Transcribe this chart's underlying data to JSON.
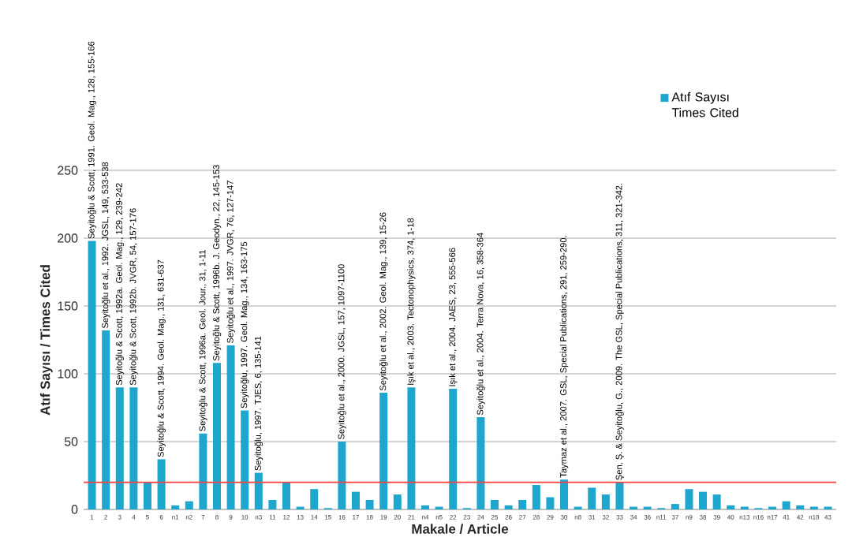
{
  "chart_data": {
    "type": "bar",
    "xlabel": "Makale / Article",
    "ylabel": "Atıf Sayısı / Times Cited",
    "categories": [
      "1",
      "2",
      "3",
      "4",
      "5",
      "6",
      "n1",
      "n2",
      "7",
      "8",
      "9",
      "10",
      "n3",
      "11",
      "12",
      "13",
      "14",
      "15",
      "16",
      "17",
      "18",
      "19",
      "20",
      "21",
      "n4",
      "n5",
      "22",
      "23",
      "24",
      "25",
      "26",
      "27",
      "28",
      "29",
      "30",
      "n8",
      "31",
      "32",
      "33",
      "34",
      "36",
      "n11",
      "37",
      "n9",
      "38",
      "39",
      "40",
      "n13",
      "n16",
      "n17",
      "41",
      "42",
      "n18",
      "43"
    ],
    "series": [
      {
        "name": "Atıf Sayısı Times Cited",
        "color": "#1fa6cc",
        "values": [
          198,
          132,
          90,
          90,
          20,
          37,
          3,
          6,
          56,
          108,
          121,
          73,
          27,
          7,
          20,
          2,
          15,
          1,
          50,
          13,
          7,
          86,
          11,
          90,
          3,
          2,
          89,
          1,
          68,
          7,
          3,
          7,
          18,
          9,
          22,
          2,
          16,
          11,
          20,
          2,
          2,
          1,
          4,
          15,
          13,
          11,
          3,
          2,
          1,
          2,
          6,
          3,
          2,
          2
        ]
      }
    ],
    "ylim": [
      0,
      250
    ],
    "yticks": [
      0,
      50,
      100,
      150,
      200,
      250
    ],
    "grid": "y",
    "legend": "top right",
    "ref_lines": [
      {
        "axis": "y",
        "value": 20,
        "color": "#ff4040"
      }
    ],
    "annotations": [
      {
        "text": "Seyitoğlu & Scott, 1991. Geol. Mag., 128, 155-166",
        "x": "1",
        "y": 198
      },
      {
        "text": "Seyitoğlu et al., 1992. JGSL, 149, 533-538",
        "x": "2",
        "y": 132
      },
      {
        "text": "Seyitoğlu & Scott, 1992a. Geol. Mag., 129, 239-242",
        "x": "3",
        "y": 90
      },
      {
        "text": "Seyitoğlu & Scott, 1992b. JVGR, 54, 157-176",
        "x": "4",
        "y": 90
      },
      {
        "text": "Seyitoğlu & Scott, 1994. Geol. Mag., 131, 631-637",
        "x": "6",
        "y": 37
      },
      {
        "text": "Seyitoğlu & Scott, 1996a. Geol. Jour., 31, 1-11",
        "x": "7",
        "y": 56
      },
      {
        "text": "Seyitoğlu & Scott, 1996b. J. Geodyn., 22, 145-153",
        "x": "8",
        "y": 108
      },
      {
        "text": "Seyitoğlu et al., 1997. JVGR, 76, 127-147",
        "x": "9",
        "y": 121
      },
      {
        "text": "Seyitoğlu, 1997. Geol. Mag., 134, 163-175",
        "x": "10",
        "y": 73
      },
      {
        "text": "Seyitoğlu, 1997. TJES, 6, 135-141",
        "x": "n3",
        "y": 27
      },
      {
        "text": "Seyitoğlu et al., 2000. JGSL, 157, 1097-1100",
        "x": "16",
        "y": 50
      },
      {
        "text": "Seyitoğlu et al., 2002. Geol. Mag., 139, 15-26",
        "x": "19",
        "y": 86
      },
      {
        "text": "Işık et al., 2003. Tectonophysics, 374, 1-18",
        "x": "21",
        "y": 90
      },
      {
        "text": "Işık et al., 2004. JAES, 23, 555-566",
        "x": "22",
        "y": 89
      },
      {
        "text": "Seyitoğlu et al., 2004. Terra Nova, 16, 358-364",
        "x": "24",
        "y": 68
      },
      {
        "text": "Taymaz et al., 2007. GSL, Special Publications, 291, 259-290.",
        "x": "30",
        "y": 22
      },
      {
        "text": "Şen, Ş. & Seyitoğlu, G., 2009. The GSL, Special Publications, 311, 321-342.",
        "x": "33",
        "y": 20
      }
    ]
  }
}
